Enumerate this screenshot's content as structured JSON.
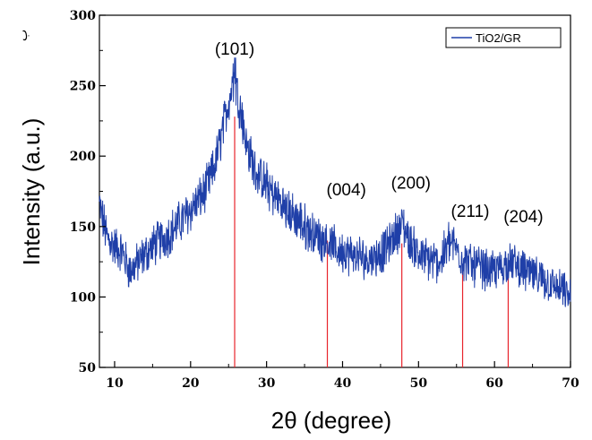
{
  "chart_data": {
    "type": "line",
    "xlabel": "2θ (degree)",
    "ylabel": "Intensity (a.u.)",
    "xlim": [
      8,
      70
    ],
    "ylim": [
      50,
      300
    ],
    "x_ticks": [
      10,
      20,
      30,
      40,
      50,
      60,
      70
    ],
    "y_ticks": [
      50,
      100,
      150,
      200,
      250,
      300
    ],
    "grid": false,
    "legend": {
      "position": "top-right"
    },
    "corner_mark": "ب",
    "series": [
      {
        "name": "TiO2/GR",
        "color": "#1f3fa8",
        "profile": [
          [
            8,
            165
          ],
          [
            9,
            142
          ],
          [
            10,
            136
          ],
          [
            11,
            132
          ],
          [
            12,
            118
          ],
          [
            13,
            124
          ],
          [
            14,
            130
          ],
          [
            15,
            136
          ],
          [
            16,
            140
          ],
          [
            17,
            144
          ],
          [
            18,
            150
          ],
          [
            19,
            155
          ],
          [
            20,
            162
          ],
          [
            21,
            168
          ],
          [
            22,
            176
          ],
          [
            23,
            190
          ],
          [
            24,
            212
          ],
          [
            25,
            240
          ],
          [
            25.8,
            255
          ],
          [
            26.5,
            235
          ],
          [
            27.5,
            205
          ],
          [
            28.5,
            190
          ],
          [
            29.5,
            182
          ],
          [
            31,
            172
          ],
          [
            33,
            160
          ],
          [
            35,
            150
          ],
          [
            37,
            142
          ],
          [
            38,
            140
          ],
          [
            39,
            134
          ],
          [
            41,
            130
          ],
          [
            43,
            127
          ],
          [
            45,
            130
          ],
          [
            46.5,
            140
          ],
          [
            47.8,
            152
          ],
          [
            49,
            138
          ],
          [
            50.5,
            128
          ],
          [
            52,
            125
          ],
          [
            53,
            126
          ],
          [
            54,
            140
          ],
          [
            55,
            134
          ],
          [
            56,
            126
          ],
          [
            58,
            121
          ],
          [
            60,
            118
          ],
          [
            62,
            125
          ],
          [
            63,
            122
          ],
          [
            65,
            115
          ],
          [
            67,
            110
          ],
          [
            69,
            104
          ],
          [
            70,
            100
          ]
        ],
        "noise_amplitude": 14
      }
    ],
    "reference_lines": {
      "color": "#e8242c",
      "lines": [
        {
          "x": 25.8,
          "top": 228
        },
        {
          "x": 38.0,
          "top": 140
        },
        {
          "x": 47.8,
          "top": 138
        },
        {
          "x": 55.8,
          "top": 119
        },
        {
          "x": 61.8,
          "top": 118
        }
      ]
    },
    "annotations": [
      {
        "text": "(101)",
        "x": 25.8,
        "y": 272
      },
      {
        "text": "(004)",
        "x": 40.5,
        "y": 172
      },
      {
        "text": "(200)",
        "x": 49.0,
        "y": 177
      },
      {
        "text": "(211)",
        "x": 56.8,
        "y": 157
      },
      {
        "text": "(204)",
        "x": 63.8,
        "y": 153
      }
    ]
  }
}
